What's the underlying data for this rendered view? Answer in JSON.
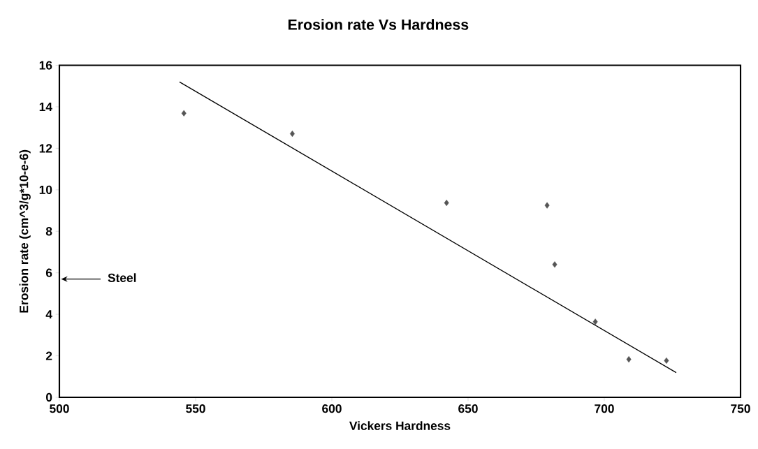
{
  "chart_data": {
    "type": "scatter",
    "title": "Erosion rate Vs Hardness",
    "xlabel": "Vickers Hardness",
    "ylabel": "Erosion rate (cm^3/g*10-e-6)",
    "xlim": [
      500,
      750
    ],
    "xticks": [
      500,
      550,
      600,
      650,
      700,
      750
    ],
    "ylim": [
      0,
      16
    ],
    "yticks": [
      0,
      2,
      4,
      6,
      8,
      10,
      12,
      14,
      16
    ],
    "grid": false,
    "marker": "diamond",
    "series": [
      {
        "type": "scatter",
        "color": "#555555",
        "x": [
          545.7,
          585.5,
          642.1,
          679.0,
          681.8,
          696.7,
          709.0,
          722.8
        ],
        "values": [
          13.69,
          12.7,
          9.37,
          9.25,
          6.4,
          3.64,
          1.83,
          1.77
        ]
      },
      {
        "type": "line",
        "color": "#000000",
        "marker": "none",
        "x": [
          544.1,
          726.4
        ],
        "values": [
          15.2,
          1.19
        ]
      }
    ],
    "annotations": [
      "Steel"
    ]
  }
}
